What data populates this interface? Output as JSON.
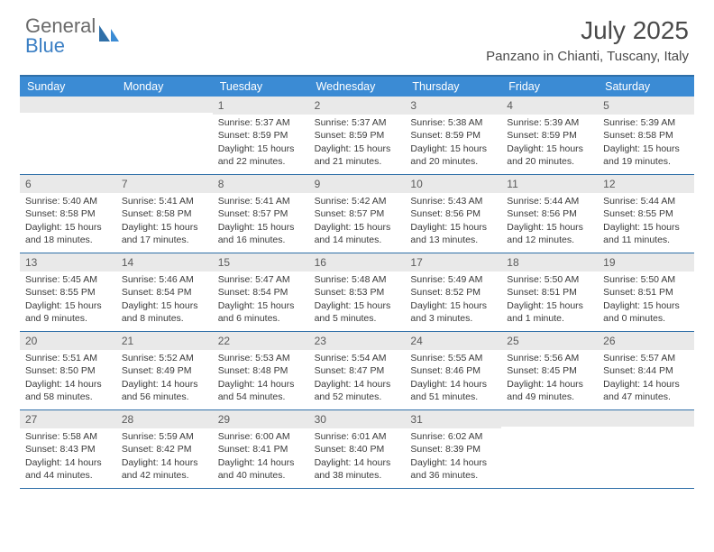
{
  "logo": {
    "text1": "General",
    "text2": "Blue"
  },
  "title": "July 2025",
  "location": "Panzano in Chianti, Tuscany, Italy",
  "colors": {
    "header_bg": "#3b8bd4",
    "header_border": "#2f6fa8",
    "daynum_bg": "#e9e9e9",
    "text": "#3a3a3a",
    "logo_gray": "#6a6a6a",
    "logo_blue": "#3b7fc4"
  },
  "day_labels": [
    "Sunday",
    "Monday",
    "Tuesday",
    "Wednesday",
    "Thursday",
    "Friday",
    "Saturday"
  ],
  "weeks": [
    [
      {
        "n": "",
        "sr": "",
        "ss": "",
        "dl": ""
      },
      {
        "n": "",
        "sr": "",
        "ss": "",
        "dl": ""
      },
      {
        "n": "1",
        "sr": "Sunrise: 5:37 AM",
        "ss": "Sunset: 8:59 PM",
        "dl": "Daylight: 15 hours and 22 minutes."
      },
      {
        "n": "2",
        "sr": "Sunrise: 5:37 AM",
        "ss": "Sunset: 8:59 PM",
        "dl": "Daylight: 15 hours and 21 minutes."
      },
      {
        "n": "3",
        "sr": "Sunrise: 5:38 AM",
        "ss": "Sunset: 8:59 PM",
        "dl": "Daylight: 15 hours and 20 minutes."
      },
      {
        "n": "4",
        "sr": "Sunrise: 5:39 AM",
        "ss": "Sunset: 8:59 PM",
        "dl": "Daylight: 15 hours and 20 minutes."
      },
      {
        "n": "5",
        "sr": "Sunrise: 5:39 AM",
        "ss": "Sunset: 8:58 PM",
        "dl": "Daylight: 15 hours and 19 minutes."
      }
    ],
    [
      {
        "n": "6",
        "sr": "Sunrise: 5:40 AM",
        "ss": "Sunset: 8:58 PM",
        "dl": "Daylight: 15 hours and 18 minutes."
      },
      {
        "n": "7",
        "sr": "Sunrise: 5:41 AM",
        "ss": "Sunset: 8:58 PM",
        "dl": "Daylight: 15 hours and 17 minutes."
      },
      {
        "n": "8",
        "sr": "Sunrise: 5:41 AM",
        "ss": "Sunset: 8:57 PM",
        "dl": "Daylight: 15 hours and 16 minutes."
      },
      {
        "n": "9",
        "sr": "Sunrise: 5:42 AM",
        "ss": "Sunset: 8:57 PM",
        "dl": "Daylight: 15 hours and 14 minutes."
      },
      {
        "n": "10",
        "sr": "Sunrise: 5:43 AM",
        "ss": "Sunset: 8:56 PM",
        "dl": "Daylight: 15 hours and 13 minutes."
      },
      {
        "n": "11",
        "sr": "Sunrise: 5:44 AM",
        "ss": "Sunset: 8:56 PM",
        "dl": "Daylight: 15 hours and 12 minutes."
      },
      {
        "n": "12",
        "sr": "Sunrise: 5:44 AM",
        "ss": "Sunset: 8:55 PM",
        "dl": "Daylight: 15 hours and 11 minutes."
      }
    ],
    [
      {
        "n": "13",
        "sr": "Sunrise: 5:45 AM",
        "ss": "Sunset: 8:55 PM",
        "dl": "Daylight: 15 hours and 9 minutes."
      },
      {
        "n": "14",
        "sr": "Sunrise: 5:46 AM",
        "ss": "Sunset: 8:54 PM",
        "dl": "Daylight: 15 hours and 8 minutes."
      },
      {
        "n": "15",
        "sr": "Sunrise: 5:47 AM",
        "ss": "Sunset: 8:54 PM",
        "dl": "Daylight: 15 hours and 6 minutes."
      },
      {
        "n": "16",
        "sr": "Sunrise: 5:48 AM",
        "ss": "Sunset: 8:53 PM",
        "dl": "Daylight: 15 hours and 5 minutes."
      },
      {
        "n": "17",
        "sr": "Sunrise: 5:49 AM",
        "ss": "Sunset: 8:52 PM",
        "dl": "Daylight: 15 hours and 3 minutes."
      },
      {
        "n": "18",
        "sr": "Sunrise: 5:50 AM",
        "ss": "Sunset: 8:51 PM",
        "dl": "Daylight: 15 hours and 1 minute."
      },
      {
        "n": "19",
        "sr": "Sunrise: 5:50 AM",
        "ss": "Sunset: 8:51 PM",
        "dl": "Daylight: 15 hours and 0 minutes."
      }
    ],
    [
      {
        "n": "20",
        "sr": "Sunrise: 5:51 AM",
        "ss": "Sunset: 8:50 PM",
        "dl": "Daylight: 14 hours and 58 minutes."
      },
      {
        "n": "21",
        "sr": "Sunrise: 5:52 AM",
        "ss": "Sunset: 8:49 PM",
        "dl": "Daylight: 14 hours and 56 minutes."
      },
      {
        "n": "22",
        "sr": "Sunrise: 5:53 AM",
        "ss": "Sunset: 8:48 PM",
        "dl": "Daylight: 14 hours and 54 minutes."
      },
      {
        "n": "23",
        "sr": "Sunrise: 5:54 AM",
        "ss": "Sunset: 8:47 PM",
        "dl": "Daylight: 14 hours and 52 minutes."
      },
      {
        "n": "24",
        "sr": "Sunrise: 5:55 AM",
        "ss": "Sunset: 8:46 PM",
        "dl": "Daylight: 14 hours and 51 minutes."
      },
      {
        "n": "25",
        "sr": "Sunrise: 5:56 AM",
        "ss": "Sunset: 8:45 PM",
        "dl": "Daylight: 14 hours and 49 minutes."
      },
      {
        "n": "26",
        "sr": "Sunrise: 5:57 AM",
        "ss": "Sunset: 8:44 PM",
        "dl": "Daylight: 14 hours and 47 minutes."
      }
    ],
    [
      {
        "n": "27",
        "sr": "Sunrise: 5:58 AM",
        "ss": "Sunset: 8:43 PM",
        "dl": "Daylight: 14 hours and 44 minutes."
      },
      {
        "n": "28",
        "sr": "Sunrise: 5:59 AM",
        "ss": "Sunset: 8:42 PM",
        "dl": "Daylight: 14 hours and 42 minutes."
      },
      {
        "n": "29",
        "sr": "Sunrise: 6:00 AM",
        "ss": "Sunset: 8:41 PM",
        "dl": "Daylight: 14 hours and 40 minutes."
      },
      {
        "n": "30",
        "sr": "Sunrise: 6:01 AM",
        "ss": "Sunset: 8:40 PM",
        "dl": "Daylight: 14 hours and 38 minutes."
      },
      {
        "n": "31",
        "sr": "Sunrise: 6:02 AM",
        "ss": "Sunset: 8:39 PM",
        "dl": "Daylight: 14 hours and 36 minutes."
      },
      {
        "n": "",
        "sr": "",
        "ss": "",
        "dl": ""
      },
      {
        "n": "",
        "sr": "",
        "ss": "",
        "dl": ""
      }
    ]
  ]
}
